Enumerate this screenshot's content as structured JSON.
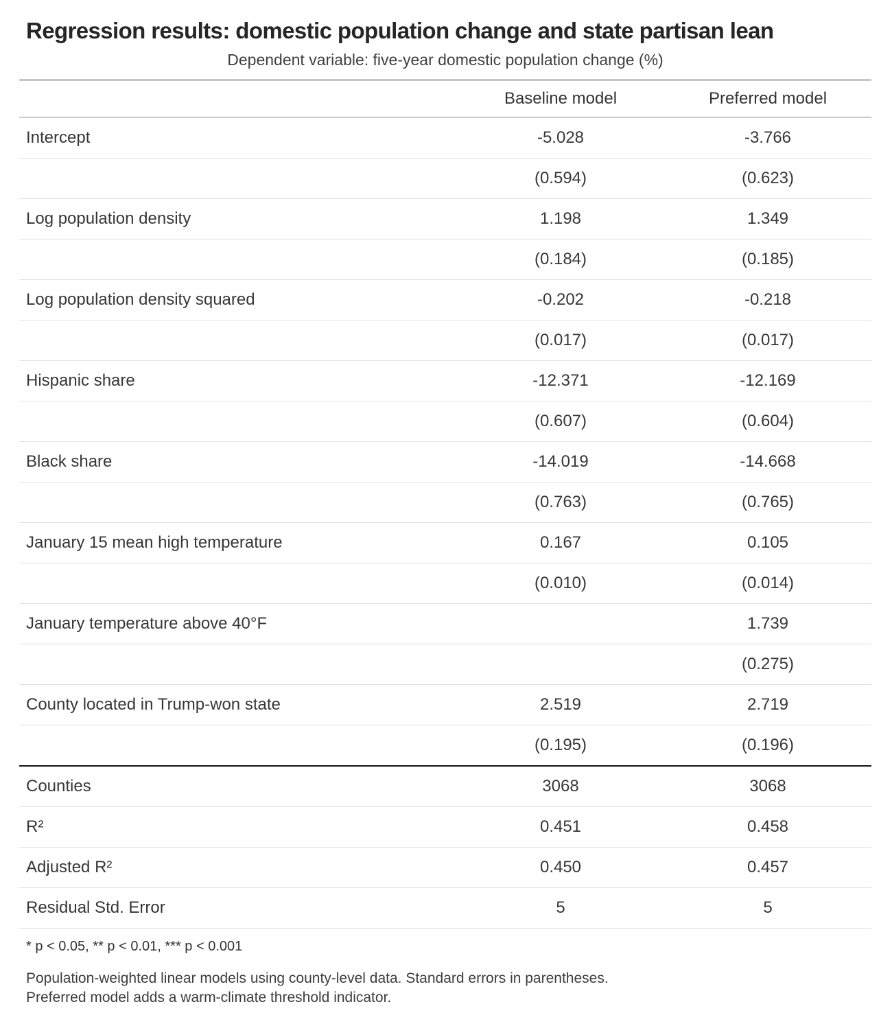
{
  "chart_data": {
    "type": "table",
    "title": "Regression results: domestic population change and state partisan lean",
    "subtitle": "Dependent variable: five-year domestic population change (%)",
    "columns": [
      "Baseline model",
      "Preferred model"
    ],
    "rows": [
      {
        "label": "Intercept",
        "baseline": "-5.028",
        "preferred": "-3.766"
      },
      {
        "label": "",
        "baseline": "(0.594)",
        "preferred": "(0.623)"
      },
      {
        "label": "Log population density",
        "baseline": "1.198",
        "preferred": "1.349"
      },
      {
        "label": "",
        "baseline": "(0.184)",
        "preferred": "(0.185)"
      },
      {
        "label": "Log population density squared",
        "baseline": "-0.202",
        "preferred": "-0.218"
      },
      {
        "label": "",
        "baseline": "(0.017)",
        "preferred": "(0.017)"
      },
      {
        "label": "Hispanic share",
        "baseline": "-12.371",
        "preferred": "-12.169"
      },
      {
        "label": "",
        "baseline": "(0.607)",
        "preferred": "(0.604)"
      },
      {
        "label": "Black share",
        "baseline": "-14.019",
        "preferred": "-14.668"
      },
      {
        "label": "",
        "baseline": "(0.763)",
        "preferred": "(0.765)"
      },
      {
        "label": "January 15 mean high temperature",
        "baseline": "0.167",
        "preferred": "0.105"
      },
      {
        "label": "",
        "baseline": "(0.010)",
        "preferred": "(0.014)"
      },
      {
        "label": "January temperature above 40°F",
        "baseline": "",
        "preferred": "1.739"
      },
      {
        "label": "",
        "baseline": "",
        "preferred": "(0.275)"
      },
      {
        "label": "County located in Trump-won state",
        "baseline": "2.519",
        "preferred": "2.719"
      },
      {
        "label": "",
        "baseline": "(0.195)",
        "preferred": "(0.196)"
      }
    ],
    "summary_rows": [
      {
        "label": "Counties",
        "baseline": "3068",
        "preferred": "3068"
      },
      {
        "label": "R²",
        "baseline": "0.451",
        "preferred": "0.458"
      },
      {
        "label": "Adjusted R²",
        "baseline": "0.450",
        "preferred": "0.457"
      },
      {
        "label": "Residual Std. Error",
        "baseline": "5",
        "preferred": "5"
      }
    ],
    "footnote": "* p < 0.05, ** p < 0.01, *** p < 0.001",
    "notes": [
      "Population-weighted linear models using county-level data. Standard errors in parentheses.",
      "Preferred model adds a warm-climate threshold indicator."
    ],
    "layout_hints": {
      "grid": "horizontal row rules only",
      "value_alignment": "center",
      "summary_separator_color": "#141414",
      "rule_color": "#e0e0e0",
      "header_rule_color": "#c9c9c9"
    }
  }
}
